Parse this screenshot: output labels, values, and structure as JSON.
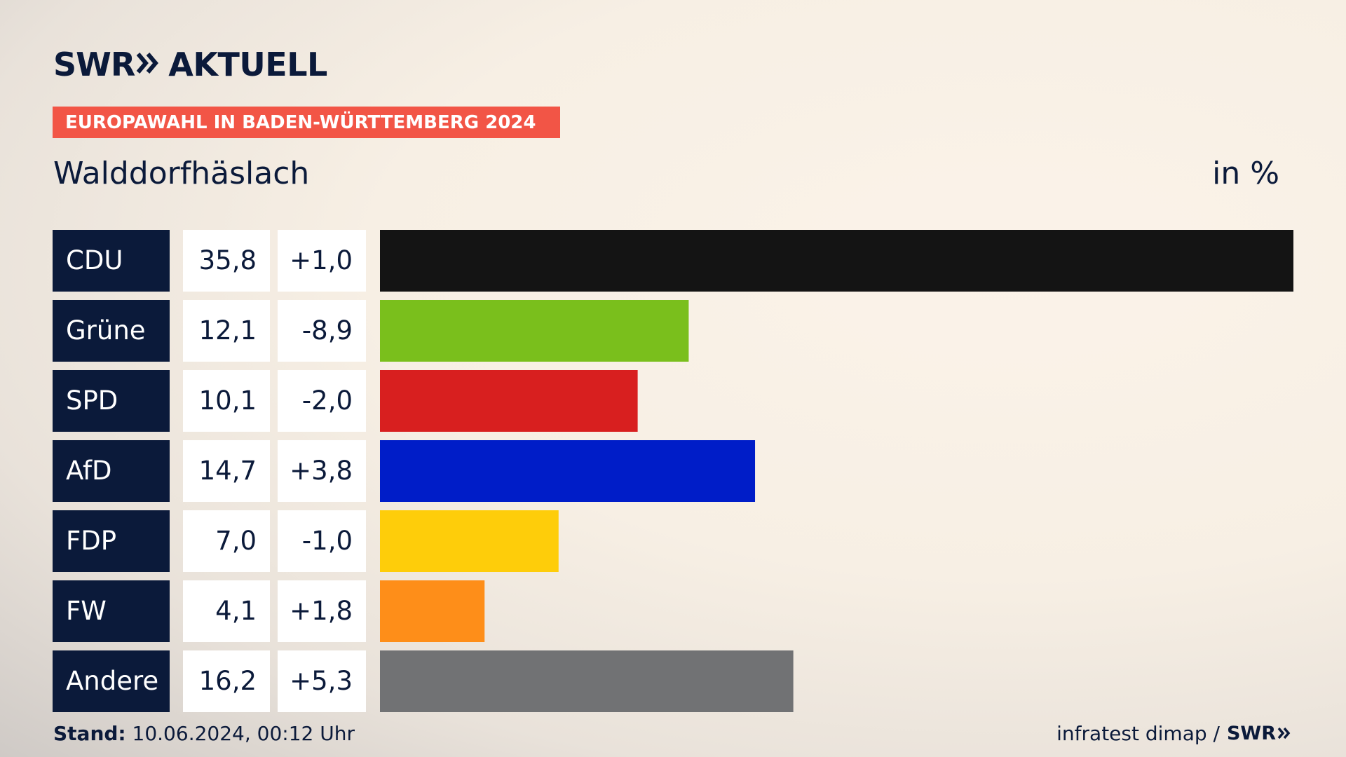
{
  "header": {
    "brand": "SWR",
    "brand_suffix": "AKTUELL",
    "banner": "EUROPAWAHL IN BADEN-WÜRTTEMBERG 2024",
    "place": "Walddorfhäslach",
    "unit": "in %"
  },
  "footer": {
    "stand_label": "Stand:",
    "stand_value": "10.06.2024, 00:12 Uhr",
    "source": "infratest dimap /",
    "source_brand": "SWR"
  },
  "chart_data": {
    "type": "bar",
    "orientation": "horizontal",
    "categories": [
      "CDU",
      "Grüne",
      "SPD",
      "AfD",
      "FDP",
      "FW",
      "Andere"
    ],
    "values": [
      35.8,
      12.1,
      10.1,
      14.7,
      7.0,
      4.1,
      16.2
    ],
    "value_labels": [
      "35,8",
      "12,1",
      "10,1",
      "14,7",
      "7,0",
      "4,1",
      "16,2"
    ],
    "change_labels": [
      "+1,0",
      "-8,9",
      "-2,0",
      "+3,8",
      "-1,0",
      "+1,8",
      "+5,3"
    ],
    "colors": [
      "#141414",
      "#7abf1c",
      "#d81f1f",
      "#001dc8",
      "#fecd0a",
      "#fe8e19",
      "#717274"
    ],
    "xlim": [
      0,
      35.8
    ],
    "grid": false,
    "legend": "none"
  }
}
